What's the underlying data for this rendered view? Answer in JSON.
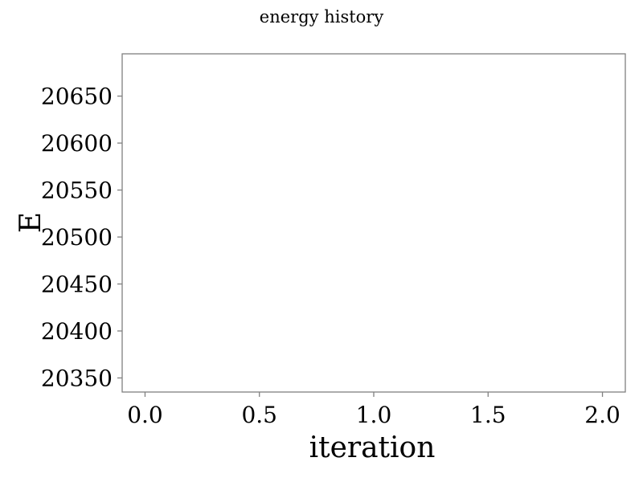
{
  "chart_data": {
    "type": "line",
    "title": "energy history",
    "xlabel": "iteration",
    "ylabel": "E",
    "xlim": [
      -0.1,
      2.1
    ],
    "ylim": [
      20335,
      20695
    ],
    "x_ticks": [
      0.0,
      0.5,
      1.0,
      1.5,
      2.0
    ],
    "x_tick_labels": [
      "0.0",
      "0.5",
      "1.0",
      "1.5",
      "2.0"
    ],
    "y_ticks": [
      20350,
      20400,
      20450,
      20500,
      20550,
      20600,
      20650
    ],
    "y_tick_labels": [
      "20350",
      "20400",
      "20450",
      "20500",
      "20550",
      "20600",
      "20650"
    ],
    "grid": false,
    "series": []
  }
}
